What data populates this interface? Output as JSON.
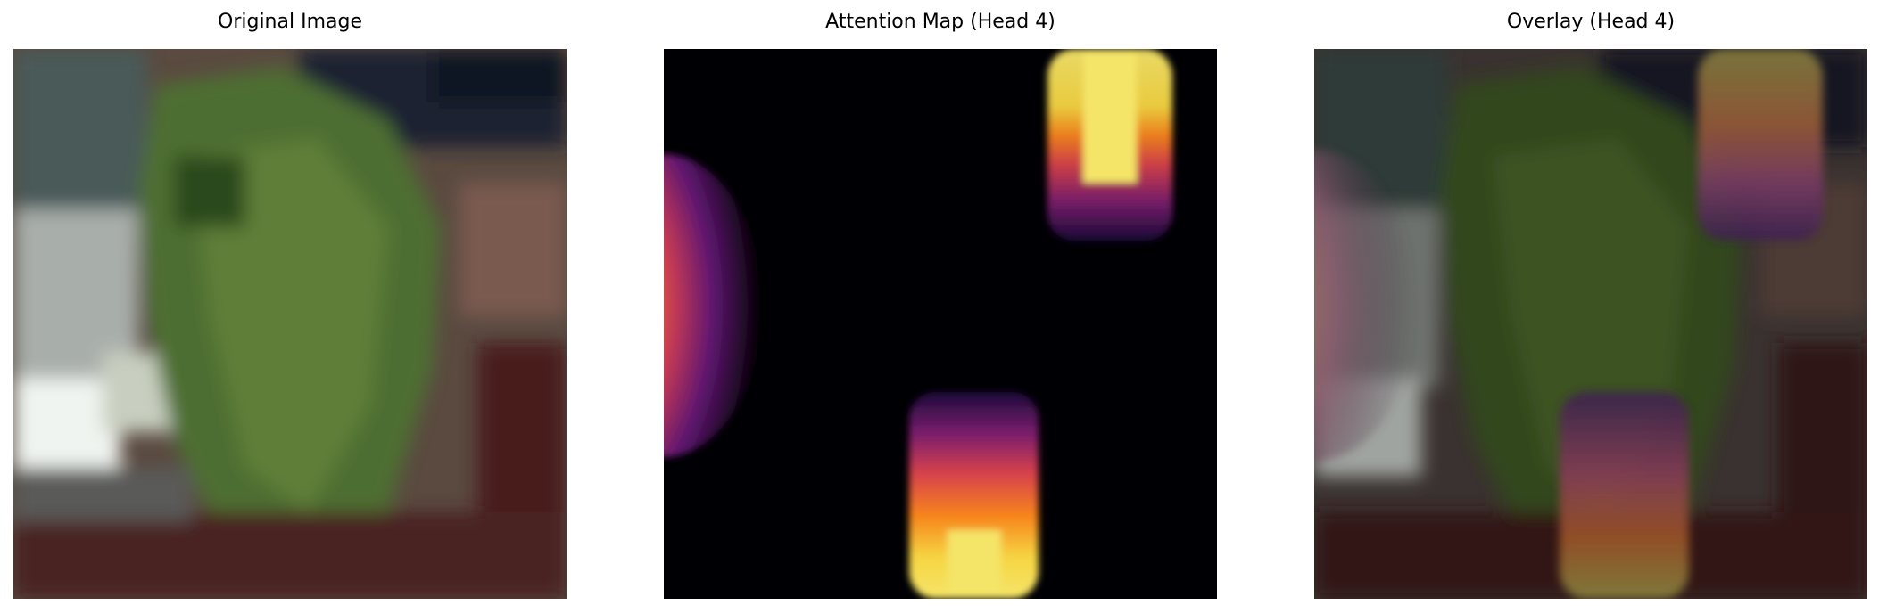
{
  "panels": [
    {
      "title": "Original Image"
    },
    {
      "title": "Attention Map (Head 4)"
    },
    {
      "title": "Overlay (Head 4)"
    }
  ]
}
